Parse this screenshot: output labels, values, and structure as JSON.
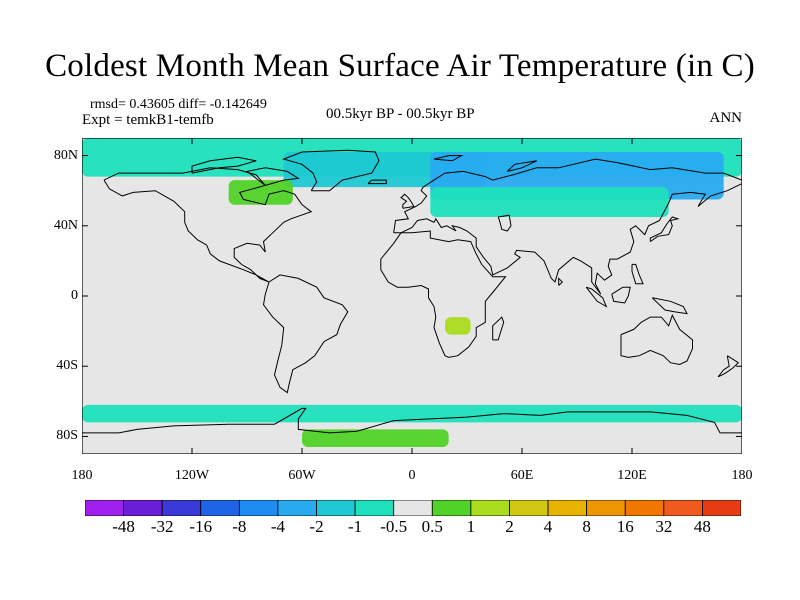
{
  "header": {
    "title": "Coldest Month Mean Surface Air Temperature (in C)",
    "stats": "rmsd= 0.43605 diff= -0.142649",
    "experiment": "Expt = temkB1-temfb",
    "period": "00.5kyr BP - 00.5kyr BP",
    "season": "ANN"
  },
  "axes": {
    "lat_labels": [
      "80N",
      "40N",
      "0",
      "40S",
      "80S"
    ],
    "lat_values": [
      80,
      40,
      0,
      -40,
      -80
    ],
    "lon_labels": [
      "180",
      "120W",
      "60W",
      "0",
      "60E",
      "120E",
      "180"
    ],
    "lon_values": [
      -180,
      -120,
      -60,
      0,
      60,
      120,
      180
    ],
    "lon_range": [
      -180,
      180
    ],
    "lat_range": [
      -90,
      90
    ]
  },
  "colorbar": {
    "labels": [
      "-48",
      "-32",
      "-16",
      "-8",
      "-4",
      "-2",
      "-1",
      "-0.5",
      "0.5",
      "1",
      "2",
      "4",
      "8",
      "16",
      "32",
      "48"
    ],
    "colors": [
      "#a020f0",
      "#6a1ed8",
      "#3a3ad8",
      "#1e64e6",
      "#1e8cf0",
      "#28aaf0",
      "#1ec8d2",
      "#1ee0bc",
      "#e6e6e6",
      "#50d228",
      "#aadc1e",
      "#d2c814",
      "#e6b400",
      "#ee9600",
      "#f07800",
      "#f05a1e",
      "#e63c14"
    ]
  },
  "colors": {
    "background": "#e6e6e6",
    "cool_light": "#1ee0bc",
    "cool_mid": "#1ec8d2",
    "cool_deep": "#28aaf0",
    "warm_light": "#50d228",
    "warm_mid": "#aadc1e",
    "coastline": "#000000"
  },
  "anomaly_regions": [
    {
      "name": "Arctic belt",
      "color": "cool_light",
      "lon": [
        -180,
        180
      ],
      "lat": [
        68,
        90
      ]
    },
    {
      "name": "North Atlantic / Greenland sea",
      "color": "cool_mid",
      "lon": [
        -70,
        40
      ],
      "lat": [
        62,
        82
      ]
    },
    {
      "name": "Siberia / Eurasia north",
      "color": "cool_deep",
      "lon": [
        10,
        170
      ],
      "lat": [
        55,
        82
      ]
    },
    {
      "name": "Eurasia mid",
      "color": "cool_light",
      "lon": [
        10,
        140
      ],
      "lat": [
        45,
        62
      ]
    },
    {
      "name": "Hudson Bay warm",
      "color": "warm_light",
      "lon": [
        -100,
        -65
      ],
      "lat": [
        52,
        66
      ]
    },
    {
      "name": "Southern Ocean cool",
      "color": "cool_light",
      "lon": [
        -180,
        180
      ],
      "lat": [
        -72,
        -62
      ]
    },
    {
      "name": "Antarctica warm (Atlantic sector)",
      "color": "warm_light",
      "lon": [
        -60,
        20
      ],
      "lat": [
        -86,
        -76
      ]
    },
    {
      "name": "Southern Africa warm",
      "color": "warm_mid",
      "lon": [
        18,
        32
      ],
      "lat": [
        -22,
        -12
      ]
    }
  ]
}
